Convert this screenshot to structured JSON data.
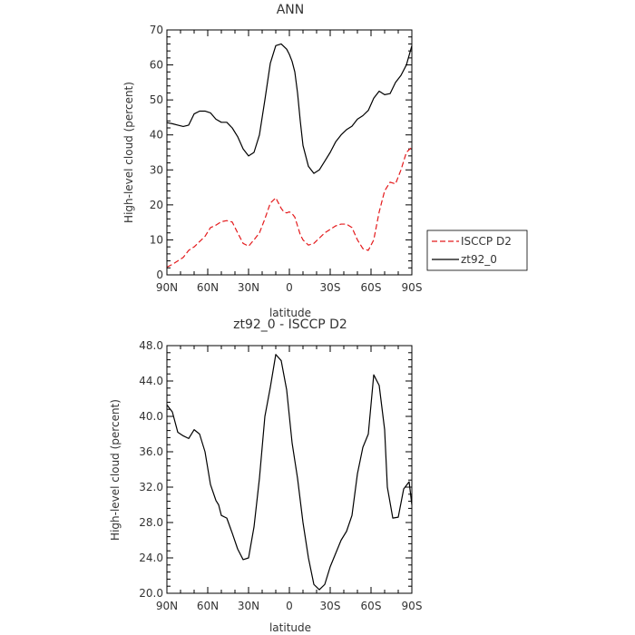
{
  "chart_data": [
    {
      "type": "line",
      "title": "ANN",
      "xlabel": "latitude",
      "ylabel": "High-level cloud (percent)",
      "xlim": [
        -90,
        90
      ],
      "ylim": [
        0,
        70
      ],
      "xticks": [
        -90,
        -60,
        -30,
        0,
        30,
        60,
        90
      ],
      "xtick_labels": [
        "90N",
        "60N",
        "30N",
        "0",
        "30S",
        "60S",
        "90S"
      ],
      "yticks": [
        0,
        10,
        20,
        30,
        40,
        50,
        60,
        70
      ],
      "ytick_labels": [
        "0",
        "10",
        "20",
        "30",
        "40",
        "50",
        "60",
        "70"
      ],
      "legend": {
        "placement": "right",
        "entries": [
          "ISCCP D2",
          "zt92_0"
        ]
      },
      "series": [
        {
          "name": "ISCCP D2",
          "color": "#e41a1c",
          "dash": true,
          "x": [
            -90,
            -86,
            -82,
            -78,
            -74,
            -70,
            -66,
            -62,
            -58,
            -54,
            -50,
            -46,
            -42,
            -38,
            -34,
            -30,
            -26,
            -22,
            -18,
            -14,
            -10,
            -6,
            -4,
            -2,
            0,
            2,
            4,
            6,
            8,
            10,
            14,
            18,
            22,
            26,
            30,
            34,
            38,
            42,
            46,
            50,
            54,
            58,
            62,
            66,
            70,
            74,
            78,
            82,
            86,
            90
          ],
          "y": [
            2.2,
            3,
            4,
            5,
            7,
            8,
            9.5,
            11,
            13.5,
            14.2,
            15.2,
            15.5,
            15.1,
            12,
            9,
            8.2,
            10,
            12,
            16,
            20.5,
            22,
            19,
            18,
            17.7,
            18,
            17.5,
            16.5,
            14,
            11.5,
            10,
            8.5,
            9,
            10.5,
            12,
            13,
            14,
            14.5,
            14.5,
            13.5,
            10,
            7.5,
            7,
            10,
            18,
            24,
            26.5,
            26,
            30,
            35,
            36.5
          ]
        },
        {
          "name": "zt92_0",
          "color": "#000000",
          "dash": false,
          "x": [
            -90,
            -86,
            -82,
            -78,
            -74,
            -70,
            -66,
            -62,
            -58,
            -54,
            -50,
            -46,
            -42,
            -38,
            -34,
            -30,
            -26,
            -22,
            -18,
            -14,
            -10,
            -6,
            -2,
            0,
            2,
            4,
            6,
            8,
            10,
            14,
            18,
            22,
            26,
            30,
            34,
            38,
            42,
            46,
            50,
            54,
            58,
            62,
            66,
            70,
            74,
            78,
            82,
            86,
            90
          ],
          "y": [
            43.5,
            43.2,
            42.8,
            42.4,
            42.8,
            46,
            46.8,
            46.8,
            46.3,
            44.5,
            43.6,
            43.6,
            42,
            39.5,
            36,
            34,
            35,
            40,
            50,
            60.5,
            65.5,
            66,
            64.5,
            63,
            61,
            58,
            52,
            44,
            37,
            31,
            29,
            30,
            32.5,
            35,
            38,
            40,
            41.5,
            42.5,
            44.5,
            45.5,
            47,
            50.5,
            52.5,
            51.5,
            51.8,
            55,
            57,
            60,
            65.5
          ]
        }
      ]
    },
    {
      "type": "line",
      "title": "zt92_0 - ISCCP D2",
      "xlabel": "latitude",
      "ylabel": "High-level cloud (percent)",
      "xlim": [
        -90,
        90
      ],
      "ylim": [
        20,
        48
      ],
      "xticks": [
        -90,
        -60,
        -30,
        0,
        30,
        60,
        90
      ],
      "xtick_labels": [
        "90N",
        "60N",
        "30N",
        "0",
        "30S",
        "60S",
        "90S"
      ],
      "yticks": [
        20,
        24,
        28,
        32,
        36,
        40,
        44,
        48
      ],
      "ytick_labels": [
        "20.0",
        "24.0",
        "28.0",
        "32.0",
        "36.0",
        "40.0",
        "44.0",
        "48.0"
      ],
      "series": [
        {
          "color": "#000000",
          "dash": false,
          "x": [
            -90,
            -86,
            -82,
            -78,
            -74,
            -70,
            -66,
            -62,
            -58,
            -54,
            -52,
            -50,
            -46,
            -42,
            -38,
            -34,
            -30,
            -26,
            -22,
            -18,
            -14,
            -10,
            -6,
            -2,
            0,
            2,
            6,
            10,
            14,
            18,
            22,
            26,
            30,
            34,
            38,
            42,
            46,
            50,
            54,
            58,
            62,
            66,
            70,
            72,
            76,
            80,
            84,
            88,
            90
          ],
          "y": [
            41.3,
            40.5,
            38.2,
            37.8,
            37.5,
            38.5,
            38,
            36,
            32.3,
            30.5,
            30,
            28.8,
            28.5,
            26.8,
            25,
            23.8,
            24,
            27.5,
            33,
            40,
            43.3,
            47,
            46.3,
            43,
            40,
            37,
            33,
            28,
            24,
            21,
            20.4,
            21,
            23,
            24.5,
            26,
            27,
            28.8,
            33.5,
            36.5,
            38,
            44.7,
            43.5,
            38.5,
            32,
            28.5,
            28.6,
            31.8,
            32.6,
            30
          ]
        }
      ]
    }
  ]
}
